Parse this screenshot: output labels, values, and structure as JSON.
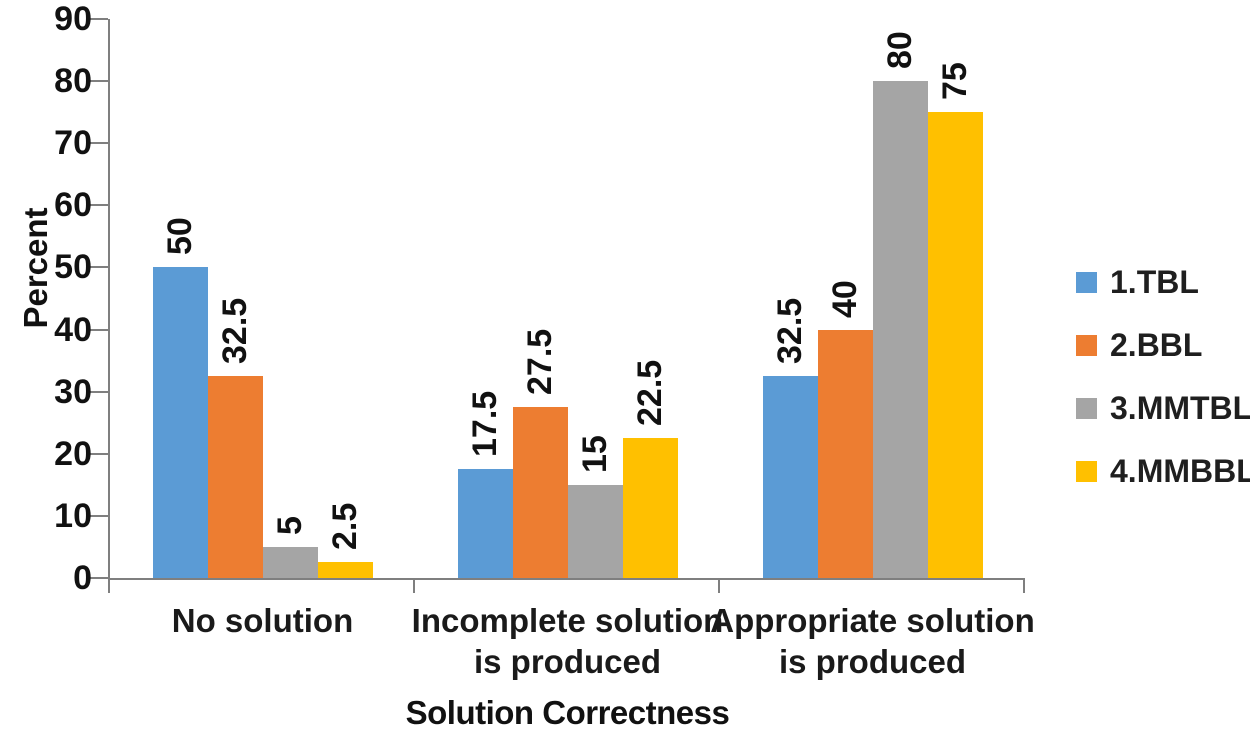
{
  "chart_data": {
    "type": "bar",
    "title": "",
    "xlabel": "Solution Correctness",
    "ylabel": "Percent",
    "categories": [
      "No solution",
      "Incomplete solution is produced",
      "Appropriate solution is produced"
    ],
    "series": [
      {
        "name": "1.TBL",
        "color": "#5B9BD5",
        "values": [
          50,
          17.5,
          32.5
        ]
      },
      {
        "name": "2.BBL",
        "color": "#ED7D31",
        "values": [
          32.5,
          27.5,
          40
        ]
      },
      {
        "name": "3.MMTBL",
        "color": "#A5A5A5",
        "values": [
          5,
          15,
          80
        ]
      },
      {
        "name": "4.MMBBL",
        "color": "#FFC000",
        "values": [
          2.5,
          22.5,
          75
        ]
      }
    ],
    "ylim": [
      0,
      90
    ],
    "ytick_step": 10,
    "ytick_labels": [
      "0",
      "10",
      "20",
      "30",
      "40",
      "50",
      "60",
      "70",
      "80",
      "90"
    ],
    "grid": false,
    "data_labels": true,
    "legend_position": "right",
    "axis_color": "#7f7f7f"
  }
}
